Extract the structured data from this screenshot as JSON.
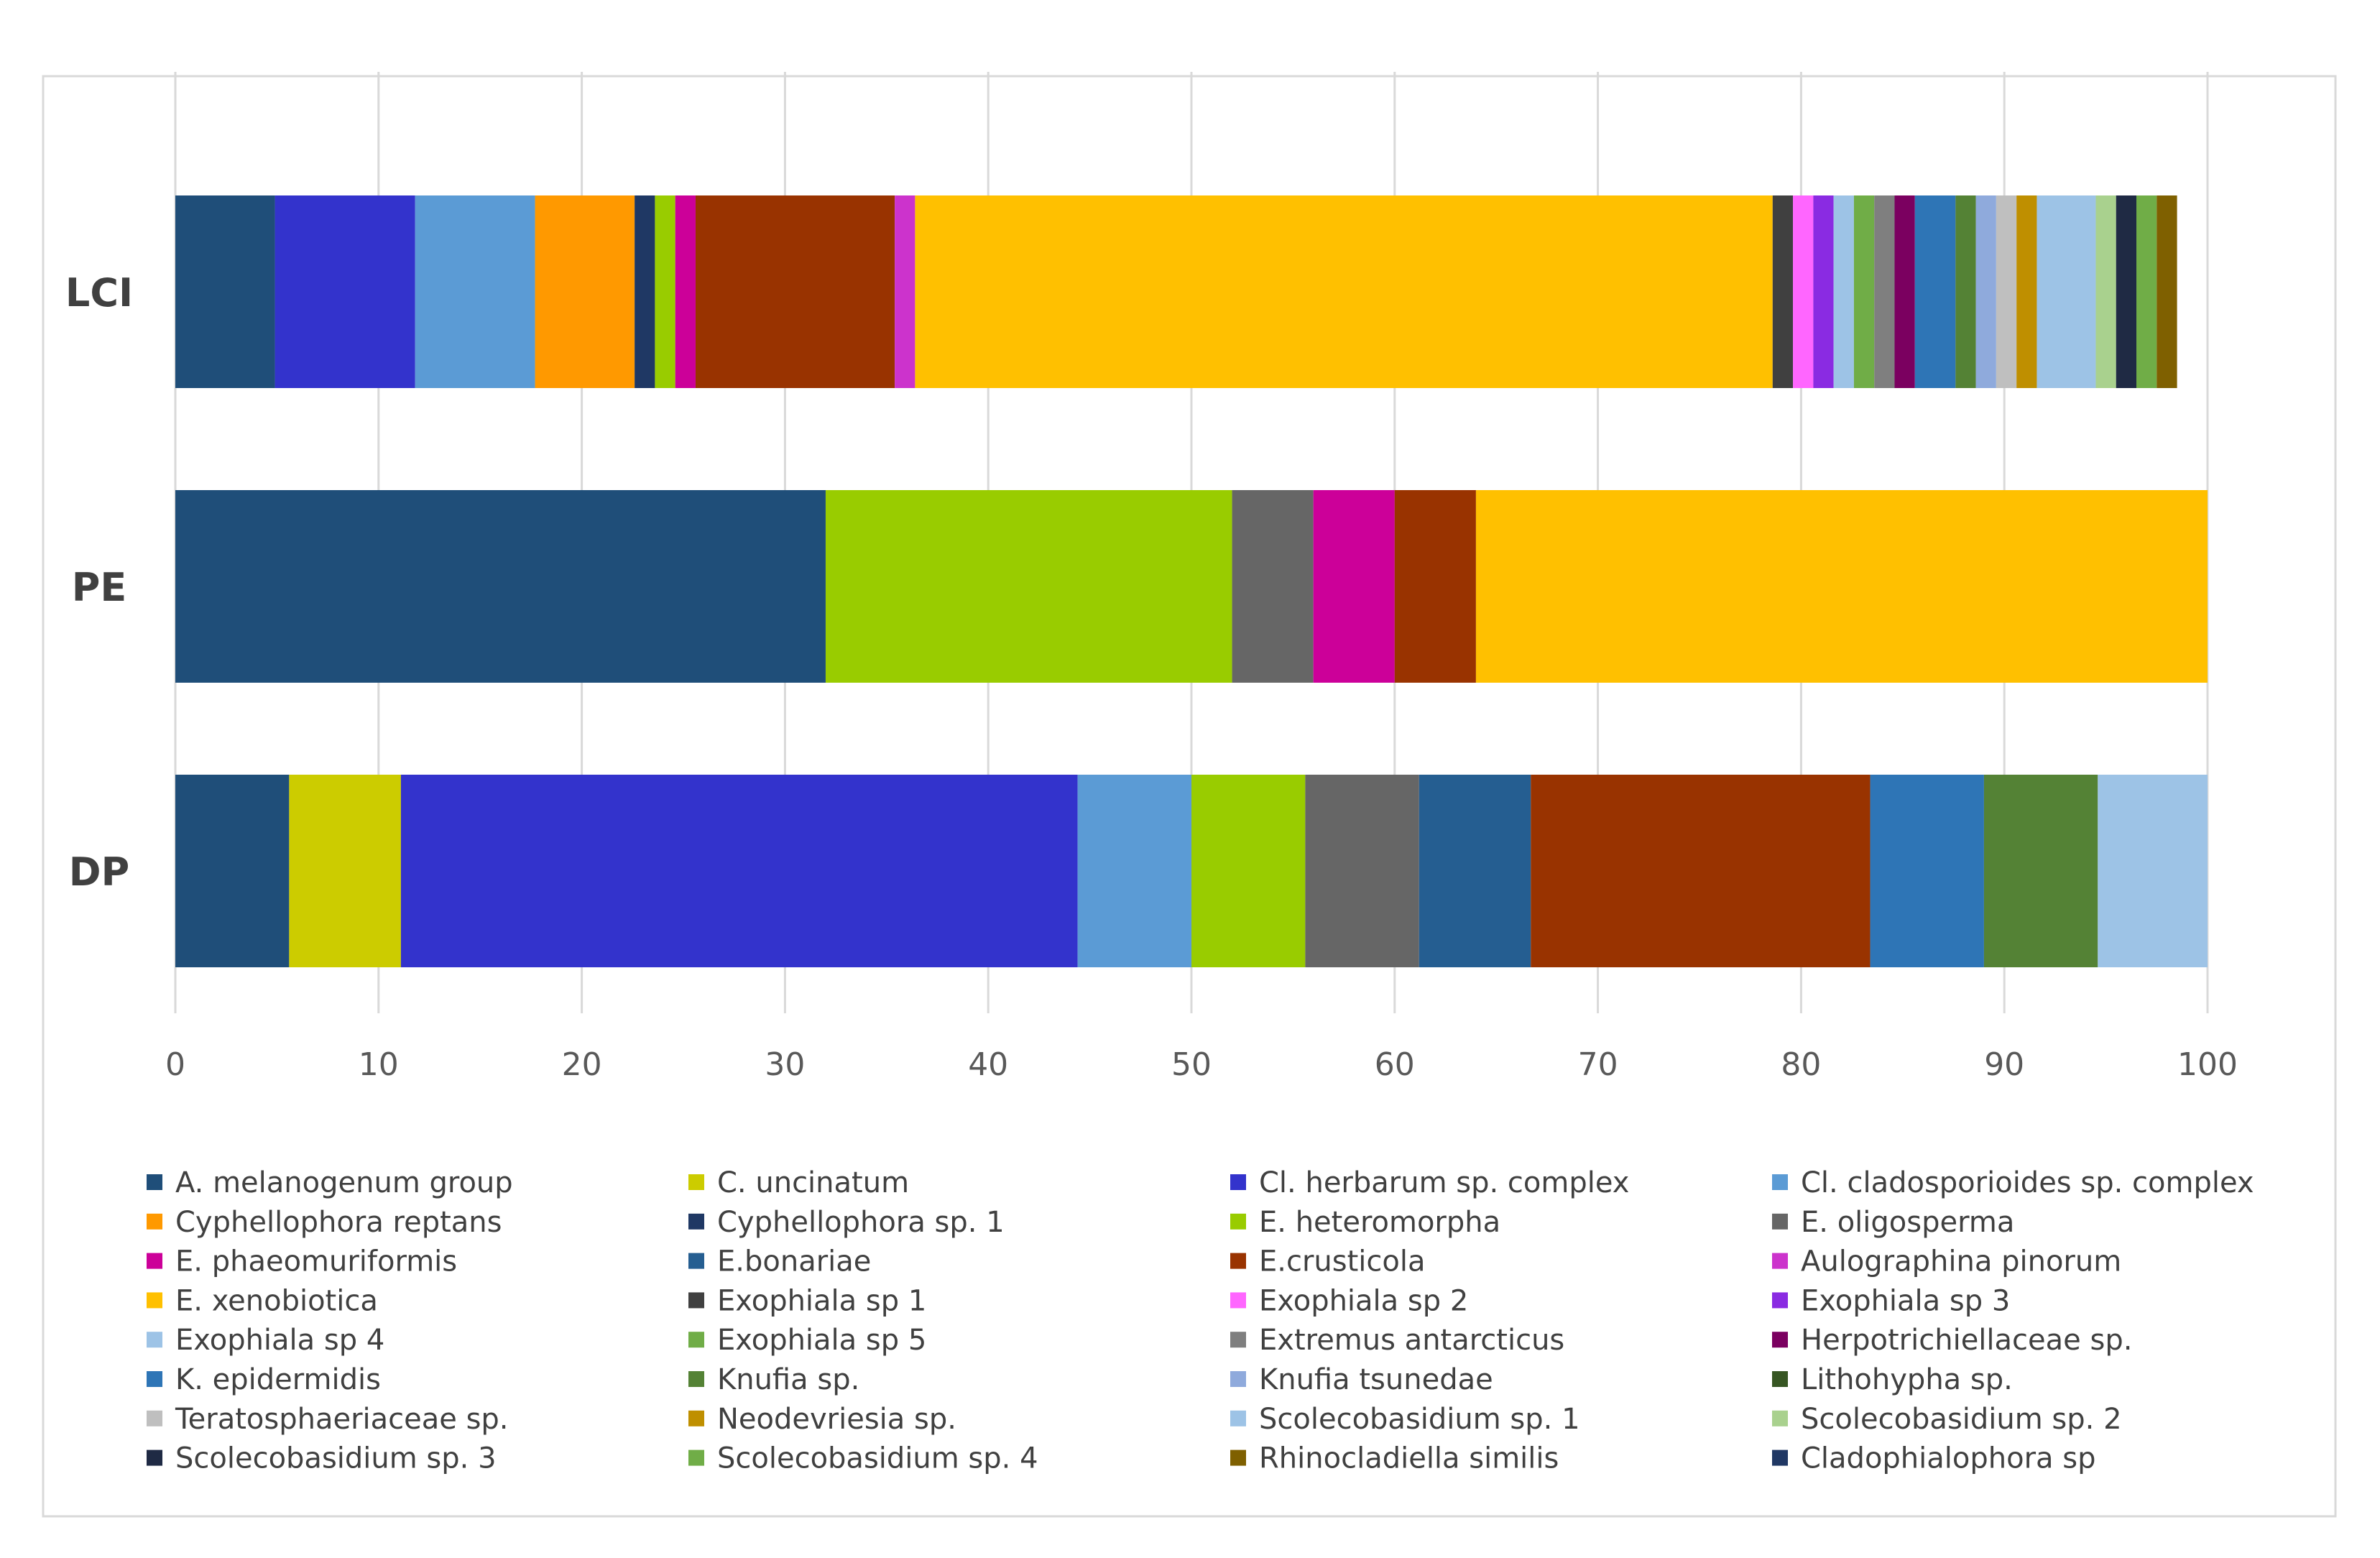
{
  "chart_data": {
    "type": "bar",
    "orientation": "horizontal",
    "stacked": true,
    "title": "",
    "xlabel": "",
    "ylabel": "",
    "xlim": [
      0,
      100
    ],
    "xticks": [
      0,
      10,
      20,
      30,
      40,
      50,
      60,
      70,
      80,
      90,
      100
    ],
    "grid": true,
    "legend_position": "bottom",
    "categories": [
      "LCI",
      "PE",
      "DP"
    ],
    "series": [
      {
        "name": "A. melanogenum group",
        "color": "#1f4e79",
        "values": [
          4.9,
          32.0,
          5.6
        ]
      },
      {
        "name": "C. uncinatum",
        "color": "#cccc00",
        "values": [
          0,
          0,
          5.5
        ]
      },
      {
        "name": "Cl. herbarum sp. complex",
        "color": "#3333cc",
        "values": [
          6.9,
          0,
          33.3
        ]
      },
      {
        "name": "Cl. cladosporioides sp. complex",
        "color": "#5b9bd5",
        "values": [
          5.9,
          0,
          5.6
        ]
      },
      {
        "name": "Cyphellophora reptans",
        "color": "#ff9900",
        "values": [
          4.9,
          0,
          0
        ]
      },
      {
        "name": "Cyphellophora sp. 1",
        "color": "#1f3864",
        "values": [
          1.0,
          0,
          0
        ]
      },
      {
        "name": "E. heteromorpha",
        "color": "#99cc00",
        "values": [
          1.0,
          20.0,
          5.6
        ]
      },
      {
        "name": "E. oligosperma",
        "color": "#666666",
        "values": [
          0,
          4.0,
          5.6
        ]
      },
      {
        "name": "E. phaeomuriformis",
        "color": "#cc0099",
        "values": [
          1.0,
          4.0,
          0
        ]
      },
      {
        "name": "E.bonariae",
        "color": "#255e91",
        "values": [
          0,
          0,
          5.5
        ]
      },
      {
        "name": "E.crusticola",
        "color": "#993300",
        "values": [
          9.8,
          4.0,
          16.7
        ]
      },
      {
        "name": "Aulographina pinorum",
        "color": "#cc33cc",
        "values": [
          1.0,
          0,
          0
        ]
      },
      {
        "name": "E. xenobiotica",
        "color": "#ffc000",
        "values": [
          42.2,
          36.0,
          0
        ]
      },
      {
        "name": "Exophiala sp 1",
        "color": "#404040",
        "values": [
          1.0,
          0,
          0
        ]
      },
      {
        "name": "Exophiala sp 2",
        "color": "#ff66ff",
        "values": [
          1.0,
          0,
          0
        ]
      },
      {
        "name": "Exophiala sp 3",
        "color": "#8a2be2",
        "values": [
          1.0,
          0,
          0
        ]
      },
      {
        "name": "Exophiala sp 4",
        "color": "#9dc3e6",
        "values": [
          1.0,
          0,
          0
        ]
      },
      {
        "name": "Exophiala sp 5",
        "color": "#70ad47",
        "values": [
          1.0,
          0,
          0
        ]
      },
      {
        "name": "Extremus antarcticus",
        "color": "#7f7f7f",
        "values": [
          1.0,
          0,
          0
        ]
      },
      {
        "name": "Herpotrichiellaceae sp.",
        "color": "#7b0060",
        "values": [
          1.0,
          0,
          0
        ]
      },
      {
        "name": "K. epidermidis",
        "color": "#2e75b6",
        "values": [
          2.0,
          0,
          5.6
        ]
      },
      {
        "name": "Knufia sp.",
        "color": "#548235",
        "values": [
          1.0,
          0,
          5.6
        ]
      },
      {
        "name": "Knufia tsunedae",
        "color": "#8faadc",
        "values": [
          1.0,
          0,
          0
        ]
      },
      {
        "name": "Lithohypha sp.",
        "color": "#375623",
        "values": [
          0,
          0,
          0
        ]
      },
      {
        "name": "Teratosphaeriaceae sp.",
        "color": "#bfbfbf",
        "values": [
          1.0,
          0,
          0
        ]
      },
      {
        "name": "Neodevriesia sp.",
        "color": "#bf8f00",
        "values": [
          1.0,
          0,
          0
        ]
      },
      {
        "name": "Scolecobasidium sp. 1",
        "color": "#9dc3e6",
        "values": [
          2.9,
          0,
          5.5
        ]
      },
      {
        "name": "Scolecobasidium sp. 2",
        "color": "#a9d18e",
        "values": [
          1.0,
          0,
          0
        ]
      },
      {
        "name": "Scolecobasidium sp. 3",
        "color": "#1f2a44",
        "values": [
          1.0,
          0,
          0
        ]
      },
      {
        "name": "Scolecobasidium sp. 4",
        "color": "#70ad47",
        "values": [
          1.0,
          0,
          0
        ]
      },
      {
        "name": "Rhinocladiella similis",
        "color": "#7f6000",
        "values": [
          1.0,
          0,
          0
        ]
      },
      {
        "name": "Cladophialophora sp",
        "color": "#203864",
        "values": [
          0,
          0,
          0
        ]
      }
    ]
  }
}
